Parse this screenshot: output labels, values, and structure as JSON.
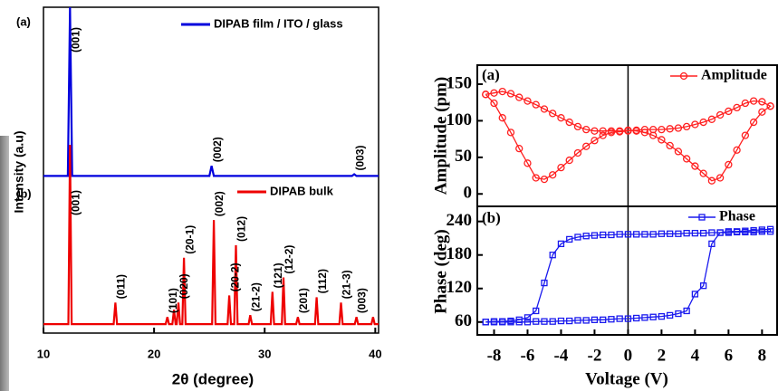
{
  "chart_data": [
    {
      "type": "line",
      "panel_label": "(a)",
      "ylabel": "Intensity (a.u)",
      "xlim": [
        10,
        40.3
      ],
      "ylim": [
        -3,
        100
      ],
      "series": [
        {
          "name": "DIPAB film / ITO / glass",
          "color": "#0000dd",
          "x": [
            10,
            12.2,
            12.4,
            12.6,
            25.0,
            25.2,
            25.4,
            37.9,
            38.1,
            38.3,
            40.3
          ],
          "values": [
            0,
            0,
            100,
            0,
            0,
            6,
            0,
            0,
            1,
            0,
            0
          ]
        }
      ],
      "annotations": [
        {
          "label": "(001)",
          "x": 12.4
        },
        {
          "label": "(002)",
          "x": 25.2
        },
        {
          "label": "(003)",
          "x": 38.1
        }
      ]
    },
    {
      "type": "line",
      "panel_label": "(b)",
      "xlabel": "2θ (degree)",
      "xlim": [
        10,
        40.3
      ],
      "ylim": [
        -5,
        100
      ],
      "xticks": [
        10,
        20,
        30,
        40
      ],
      "series": [
        {
          "name": "DIPAB bulk",
          "color": "#ee0000",
          "x": [
            10,
            12.25,
            12.4,
            12.55,
            16.35,
            16.5,
            16.65,
            21.05,
            21.2,
            21.35,
            21.65,
            21.8,
            21.95,
            22.05,
            22.2,
            22.35,
            22.55,
            22.7,
            22.85,
            25.25,
            25.4,
            25.55,
            26.65,
            26.8,
            26.95,
            27.25,
            27.4,
            27.55,
            28.55,
            28.7,
            28.85,
            30.55,
            30.7,
            30.85,
            31.55,
            31.7,
            31.85,
            32.85,
            33.0,
            33.15,
            34.55,
            34.7,
            34.85,
            36.75,
            36.9,
            37.05,
            38.15,
            38.3,
            38.45,
            39.65,
            39.8,
            39.95,
            40.3
          ],
          "values": [
            0,
            0,
            100,
            0,
            0,
            12,
            0,
            0,
            4,
            0,
            0,
            8,
            0,
            0,
            12,
            0,
            0,
            37,
            0,
            0,
            58,
            0,
            0,
            16,
            0,
            0,
            44,
            0,
            0,
            5,
            0,
            0,
            18,
            0,
            0,
            26,
            0,
            0,
            4,
            0,
            0,
            15,
            0,
            0,
            12,
            0,
            0,
            4,
            0,
            0,
            4,
            0,
            0
          ]
        }
      ],
      "annotations": [
        {
          "label": "(001)",
          "x": 12.4
        },
        {
          "label": "(011)",
          "x": 16.5
        },
        {
          "label": "(101)",
          "x": 21.2
        },
        {
          "label": "(020)",
          "x": 22.2
        },
        {
          "label": "(20-1)",
          "x": 22.7
        },
        {
          "label": "(002)",
          "x": 25.4
        },
        {
          "label": "(20-2)",
          "x": 26.8
        },
        {
          "label": "(012)",
          "x": 27.4
        },
        {
          "label": "(21-2)",
          "x": 28.7
        },
        {
          "label": "(121)",
          "x": 30.7
        },
        {
          "label": "(12-2)",
          "x": 31.7
        },
        {
          "label": "(201)",
          "x": 33.0
        },
        {
          "label": "(112)",
          "x": 34.7
        },
        {
          "label": "(21-3)",
          "x": 36.9
        },
        {
          "label": "(003)",
          "x": 38.3
        }
      ]
    },
    {
      "type": "line",
      "panel_label": "(a)",
      "ylabel": "Amplitude (pm)",
      "xlim": [
        -9,
        8.9
      ],
      "ylim": [
        -17,
        176
      ],
      "yticks": [
        0,
        50,
        100,
        150
      ],
      "series": [
        {
          "name": "Amplitude",
          "color": "#ff2020",
          "marker": "circle",
          "x": [
            -8.5,
            -8,
            -7.5,
            -7,
            -6.5,
            -6,
            -5.5,
            -5,
            -4.5,
            -4,
            -3.5,
            -3,
            -2.5,
            -2,
            -1.5,
            -1,
            -0.5,
            0,
            0.5,
            1,
            1.5,
            2,
            2.5,
            3,
            3.5,
            4,
            4.5,
            5,
            5.5,
            6,
            6.5,
            7,
            7.5,
            8,
            8.5,
            8.5,
            8,
            7.5,
            7,
            6.5,
            6,
            5.5,
            5,
            4.5,
            4,
            3.5,
            3,
            2.5,
            2,
            1.5,
            1,
            0.5,
            0,
            -0.5,
            -1,
            -1.5,
            -2,
            -2.5,
            -3,
            -3.5,
            -4,
            -4.5,
            -5,
            -5.5,
            -6,
            -6.5,
            -7,
            -7.5,
            -8,
            -8.5
          ],
          "values": [
            136,
            138,
            140,
            137,
            132,
            127,
            122,
            116,
            110,
            104,
            98,
            92,
            88,
            86,
            86,
            86,
            86,
            87,
            86,
            84,
            80,
            74,
            66,
            58,
            48,
            38,
            28,
            18,
            22,
            40,
            60,
            80,
            98,
            112,
            120,
            120,
            126,
            127,
            124,
            118,
            113,
            108,
            102,
            98,
            95,
            92,
            90,
            89,
            88,
            88,
            88,
            87,
            86,
            85,
            84,
            80,
            73,
            65,
            56,
            46,
            36,
            26,
            20,
            22,
            42,
            62,
            84,
            104,
            124,
            136
          ]
        }
      ]
    },
    {
      "type": "line",
      "panel_label": "(b)",
      "ylabel": "Phase (deg)",
      "xlabel": "Voltage (V)",
      "xlim": [
        -9,
        8.9
      ],
      "ylim": [
        37,
        267
      ],
      "yticks": [
        60,
        120,
        180,
        240
      ],
      "xticks": [
        -8,
        -6,
        -4,
        -2,
        0,
        2,
        4,
        6,
        8
      ],
      "series": [
        {
          "name": "Phase",
          "color": "#1a1aee",
          "marker": "square",
          "x": [
            -8.5,
            -8,
            -7.5,
            -7,
            -6.5,
            -6,
            -5.5,
            -5,
            -4.5,
            -4,
            -3.5,
            -3,
            -2.5,
            -2,
            -1.5,
            -1,
            -0.5,
            0,
            0.5,
            1,
            1.5,
            2,
            2.5,
            3,
            3.5,
            4,
            4.5,
            5,
            5.5,
            6,
            6.5,
            7,
            7.5,
            8,
            8.5,
            8.5,
            8,
            7.5,
            7,
            6.5,
            6,
            5.5,
            5,
            4.5,
            4,
            3.5,
            3,
            2.5,
            2,
            1.5,
            1,
            0.5,
            0,
            -0.5,
            -1,
            -1.5,
            -2,
            -2.5,
            -3,
            -3.5,
            -4,
            -4.5,
            -5,
            -5.5,
            -6,
            -6.5,
            -7,
            -7.5,
            -8,
            -8.5
          ],
          "values": [
            60,
            61,
            61,
            62,
            64,
            68,
            80,
            130,
            180,
            200,
            208,
            212,
            214,
            215,
            216,
            216,
            217,
            217,
            217,
            217,
            217,
            218,
            218,
            218,
            219,
            219,
            219,
            220,
            220,
            220,
            221,
            221,
            221,
            222,
            222,
            226,
            225,
            224,
            223,
            222,
            222,
            220,
            200,
            125,
            110,
            80,
            75,
            72,
            70,
            69,
            68,
            67,
            66,
            66,
            65,
            64,
            64,
            63,
            63,
            62,
            62,
            61,
            61,
            61,
            60,
            60,
            60,
            60,
            60,
            60
          ]
        }
      ]
    }
  ]
}
